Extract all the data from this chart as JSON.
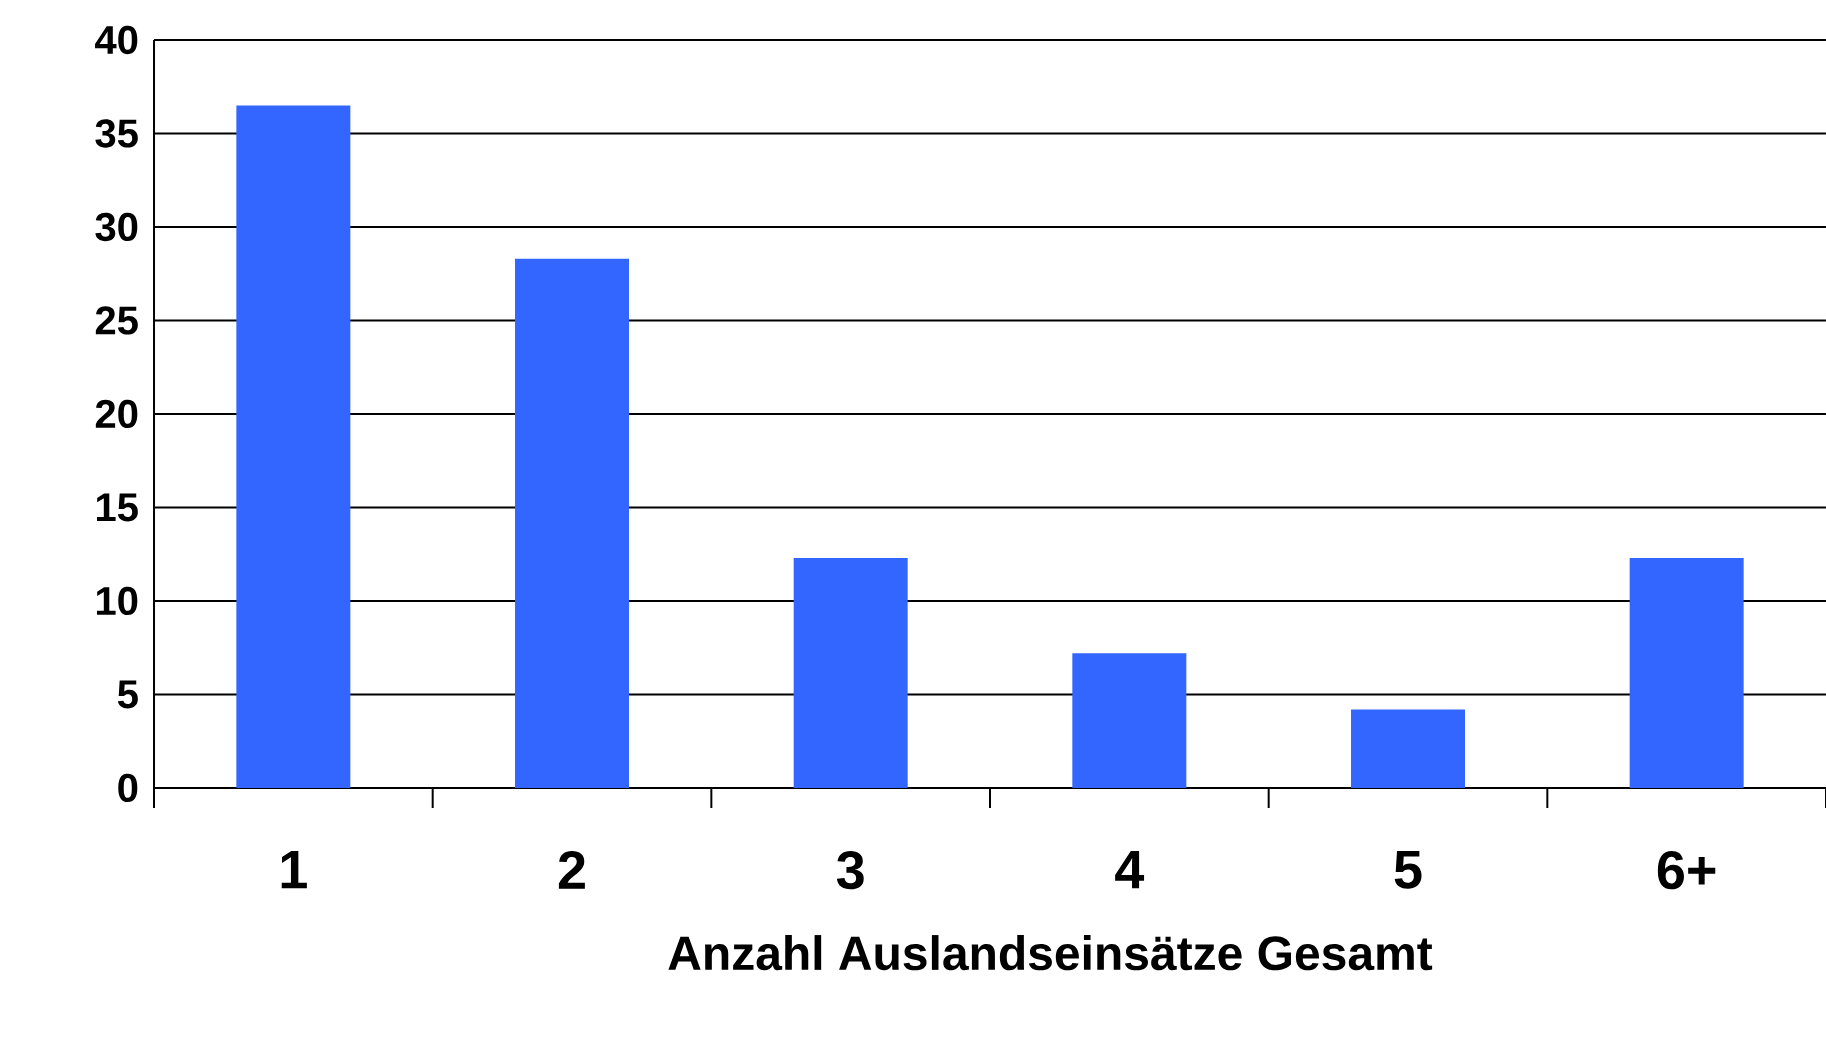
{
  "chart_data": {
    "type": "bar",
    "xlabel": "Anzahl Auslandseinsätze Gesamt",
    "categories": [
      "1",
      "2",
      "3",
      "4",
      "5",
      "6+"
    ],
    "values": [
      36.5,
      28.3,
      12.3,
      7.2,
      4.2,
      12.3
    ],
    "color": "#3366ff",
    "ylim": [
      0,
      40
    ],
    "yticks": [
      0,
      5,
      10,
      15,
      20,
      25,
      30,
      35,
      40
    ],
    "grid": "y"
  }
}
